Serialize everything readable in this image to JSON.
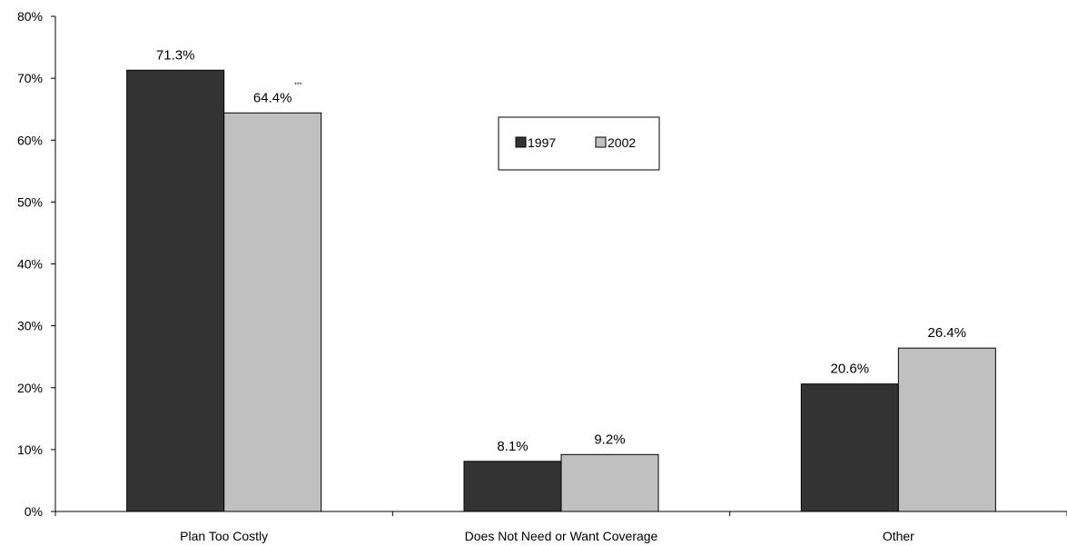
{
  "chart_data": {
    "type": "bar",
    "categories": [
      "Plan Too Costly",
      "Does Not Need or Want Coverage",
      "Other"
    ],
    "series": [
      {
        "name": "1997",
        "values": [
          71.3,
          8.1,
          20.6
        ],
        "labels": [
          "71.3%",
          "8.1%",
          "20.6%"
        ],
        "color": "#333333"
      },
      {
        "name": "2002",
        "values": [
          64.4,
          9.2,
          26.4
        ],
        "labels": [
          "64.4%",
          "9.2%",
          "26.4%"
        ],
        "color": "#c0c0c0"
      }
    ],
    "annotations": [
      {
        "category": "Plan Too Costly",
        "series": "2002",
        "text": "***"
      }
    ],
    "yticks": [
      "0%",
      "10%",
      "20%",
      "30%",
      "40%",
      "50%",
      "60%",
      "70%",
      "80%"
    ],
    "ylim": [
      0,
      80
    ],
    "title": "",
    "xlabel": "",
    "ylabel": "",
    "grid": false,
    "legend_position": "top-center"
  }
}
